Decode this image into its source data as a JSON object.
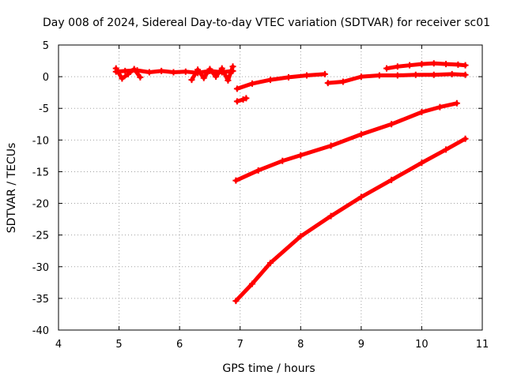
{
  "chart_data": {
    "type": "scatter",
    "title": "Day 008 of 2024, Sidereal Day-to-day VTEC variation (SDTVAR) for receiver sc01",
    "xlabel": "GPS time / hours",
    "ylabel": "SDTVAR / TECUs",
    "xlim": [
      4,
      11
    ],
    "ylim": [
      -40,
      5
    ],
    "xticks": [
      "4",
      "5",
      "6",
      "7",
      "8",
      "9",
      "10",
      "11"
    ],
    "yticks": [
      "5",
      "0",
      "-5",
      "-10",
      "-15",
      "-20",
      "-25",
      "-30",
      "-35",
      "-40"
    ],
    "grid": true,
    "marker": "plus",
    "color": "#ff0000",
    "series": [
      {
        "x": [
          4.95,
          5.1,
          5.3,
          5.5,
          5.7,
          5.9,
          6.1,
          6.3,
          6.5,
          6.7,
          6.88
        ],
        "y": [
          0.8,
          0.9,
          1.0,
          0.7,
          0.9,
          0.7,
          0.8,
          0.6,
          0.9,
          0.7,
          0.9
        ]
      },
      {
        "x": [
          4.95,
          5.05,
          5.15,
          5.25,
          5.35
        ],
        "y": [
          1.3,
          -0.3,
          0.4,
          1.2,
          -0.1
        ]
      },
      {
        "x": [
          6.2,
          6.3,
          6.4,
          6.5,
          6.6,
          6.7,
          6.8,
          6.88
        ],
        "y": [
          -0.5,
          1.1,
          -0.2,
          1.2,
          0.0,
          1.3,
          -0.6,
          1.6
        ]
      },
      {
        "x": [
          6.95,
          7.2,
          7.5,
          7.8,
          8.1,
          8.4
        ],
        "y": [
          -1.9,
          -1.1,
          -0.5,
          -0.1,
          0.2,
          0.4
        ]
      },
      {
        "x": [
          6.95,
          7.05,
          7.1
        ],
        "y": [
          -3.9,
          -3.6,
          -3.4
        ]
      },
      {
        "x": [
          8.45,
          8.7,
          9.0,
          9.3,
          9.6,
          9.9,
          10.2,
          10.5,
          10.72
        ],
        "y": [
          -1.0,
          -0.8,
          0.0,
          0.2,
          0.2,
          0.3,
          0.3,
          0.4,
          0.3
        ]
      },
      {
        "x": [
          9.42,
          9.6,
          9.8,
          10.0,
          10.2,
          10.4,
          10.6,
          10.72
        ],
        "y": [
          1.3,
          1.6,
          1.8,
          2.0,
          2.1,
          2.0,
          1.9,
          1.8
        ]
      },
      {
        "x": [
          6.93,
          7.3,
          7.7,
          8.0,
          8.5,
          9.0,
          9.5,
          10.0,
          10.3,
          10.58
        ],
        "y": [
          -16.4,
          -14.8,
          -13.3,
          -12.4,
          -10.9,
          -9.1,
          -7.5,
          -5.6,
          -4.8,
          -4.2
        ]
      },
      {
        "x": [
          6.93,
          7.2,
          7.5,
          8.0,
          8.5,
          9.0,
          9.5,
          10.0,
          10.4,
          10.72
        ],
        "y": [
          -35.4,
          -32.7,
          -29.4,
          -25.2,
          -22.0,
          -19.0,
          -16.3,
          -13.6,
          -11.5,
          -9.8
        ]
      }
    ]
  }
}
